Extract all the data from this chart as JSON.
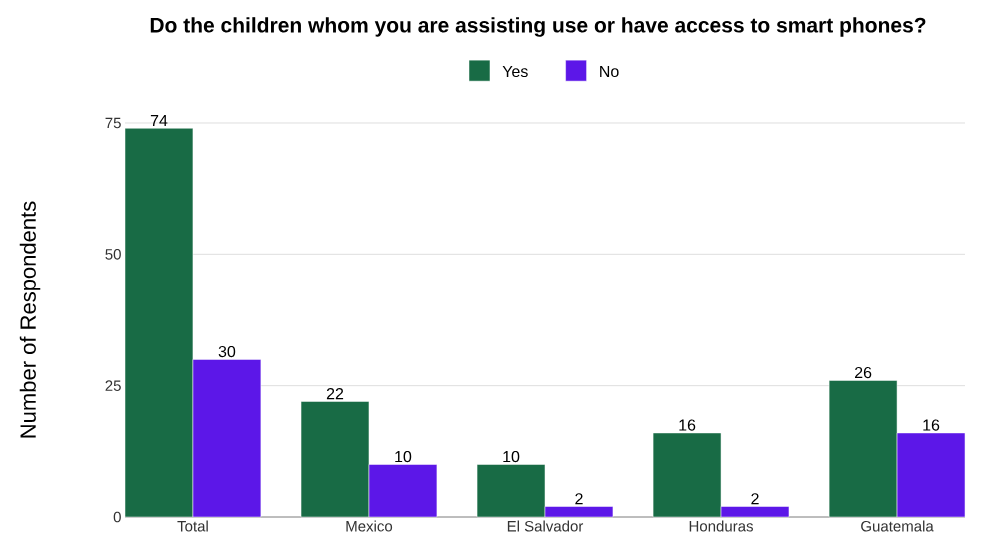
{
  "chart_data": {
    "type": "bar",
    "title": "Do the children whom you are assisting use or have access to smart phones?",
    "ylabel": "Number of Respondents",
    "categories": [
      "Total",
      "Mexico",
      "El Salvador",
      "Honduras",
      "Guatemala"
    ],
    "series": [
      {
        "name": "Yes",
        "color": "#186b45",
        "values": [
          74,
          22,
          10,
          16,
          26
        ]
      },
      {
        "name": "No",
        "color": "#5c17e8",
        "values": [
          30,
          10,
          2,
          2,
          16
        ]
      }
    ],
    "ylim": [
      0,
      75
    ],
    "yticks": [
      0,
      25,
      50,
      75
    ],
    "grid": "y",
    "legend": "top",
    "data_labels": true
  }
}
